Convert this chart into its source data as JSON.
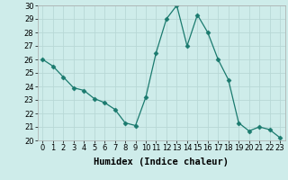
{
  "x": [
    0,
    1,
    2,
    3,
    4,
    5,
    6,
    7,
    8,
    9,
    10,
    11,
    12,
    13,
    14,
    15,
    16,
    17,
    18,
    19,
    20,
    21,
    22,
    23
  ],
  "y": [
    26.0,
    25.5,
    24.7,
    23.9,
    23.7,
    23.1,
    22.8,
    22.3,
    21.3,
    21.1,
    23.2,
    26.5,
    29.0,
    30.0,
    27.0,
    29.3,
    28.0,
    26.0,
    24.5,
    21.3,
    20.7,
    21.0,
    20.8,
    20.2
  ],
  "line_color": "#1a7a6e",
  "marker": "D",
  "marker_size": 2.5,
  "bg_color": "#ceecea",
  "grid_color": "#b8d8d6",
  "xlabel": "Humidex (Indice chaleur)",
  "ylim": [
    20,
    30
  ],
  "xlim": [
    -0.5,
    23.5
  ],
  "yticks": [
    20,
    21,
    22,
    23,
    24,
    25,
    26,
    27,
    28,
    29,
    30
  ],
  "xticks": [
    0,
    1,
    2,
    3,
    4,
    5,
    6,
    7,
    8,
    9,
    10,
    11,
    12,
    13,
    14,
    15,
    16,
    17,
    18,
    19,
    20,
    21,
    22,
    23
  ],
  "xlabel_fontsize": 7.5,
  "tick_fontsize": 6
}
